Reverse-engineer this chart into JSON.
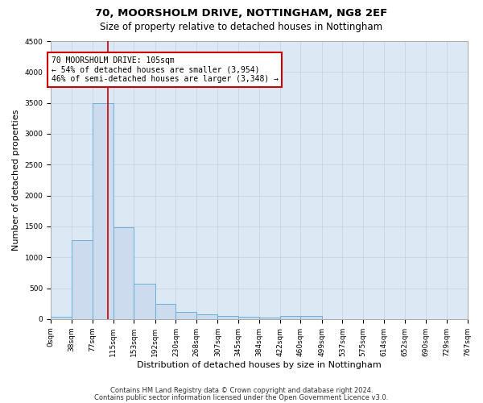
{
  "title1": "70, MOORSHOLM DRIVE, NOTTINGHAM, NG8 2EF",
  "title2": "Size of property relative to detached houses in Nottingham",
  "xlabel": "Distribution of detached houses by size in Nottingham",
  "ylabel": "Number of detached properties",
  "bin_edges": [
    0,
    38,
    77,
    115,
    153,
    192,
    230,
    268,
    307,
    345,
    384,
    422,
    460,
    499,
    537,
    575,
    614,
    652,
    690,
    729,
    767
  ],
  "bar_heights": [
    40,
    1280,
    3500,
    1480,
    575,
    240,
    115,
    80,
    50,
    35,
    30,
    50,
    50,
    0,
    0,
    0,
    0,
    0,
    0,
    0
  ],
  "bar_color": "#ccdcee",
  "bar_edgecolor": "#6aaed6",
  "grid_color": "#c8d0d8",
  "background_color": "#dce8f4",
  "property_size": 105,
  "vline_color": "#cc0000",
  "annotation_line1": "70 MOORSHOLM DRIVE: 105sqm",
  "annotation_line2": "← 54% of detached houses are smaller (3,954)",
  "annotation_line3": "46% of semi-detached houses are larger (3,348) →",
  "annotation_boxcolor": "white",
  "annotation_edgecolor": "#cc0000",
  "ylim": [
    0,
    4500
  ],
  "yticks": [
    0,
    500,
    1000,
    1500,
    2000,
    2500,
    3000,
    3500,
    4000,
    4500
  ],
  "footer1": "Contains HM Land Registry data © Crown copyright and database right 2024.",
  "footer2": "Contains public sector information licensed under the Open Government Licence v3.0.",
  "title1_fontsize": 9.5,
  "title2_fontsize": 8.5,
  "tick_fontsize": 6.5,
  "ylabel_fontsize": 8,
  "xlabel_fontsize": 8,
  "annotation_fontsize": 7,
  "footer_fontsize": 6
}
